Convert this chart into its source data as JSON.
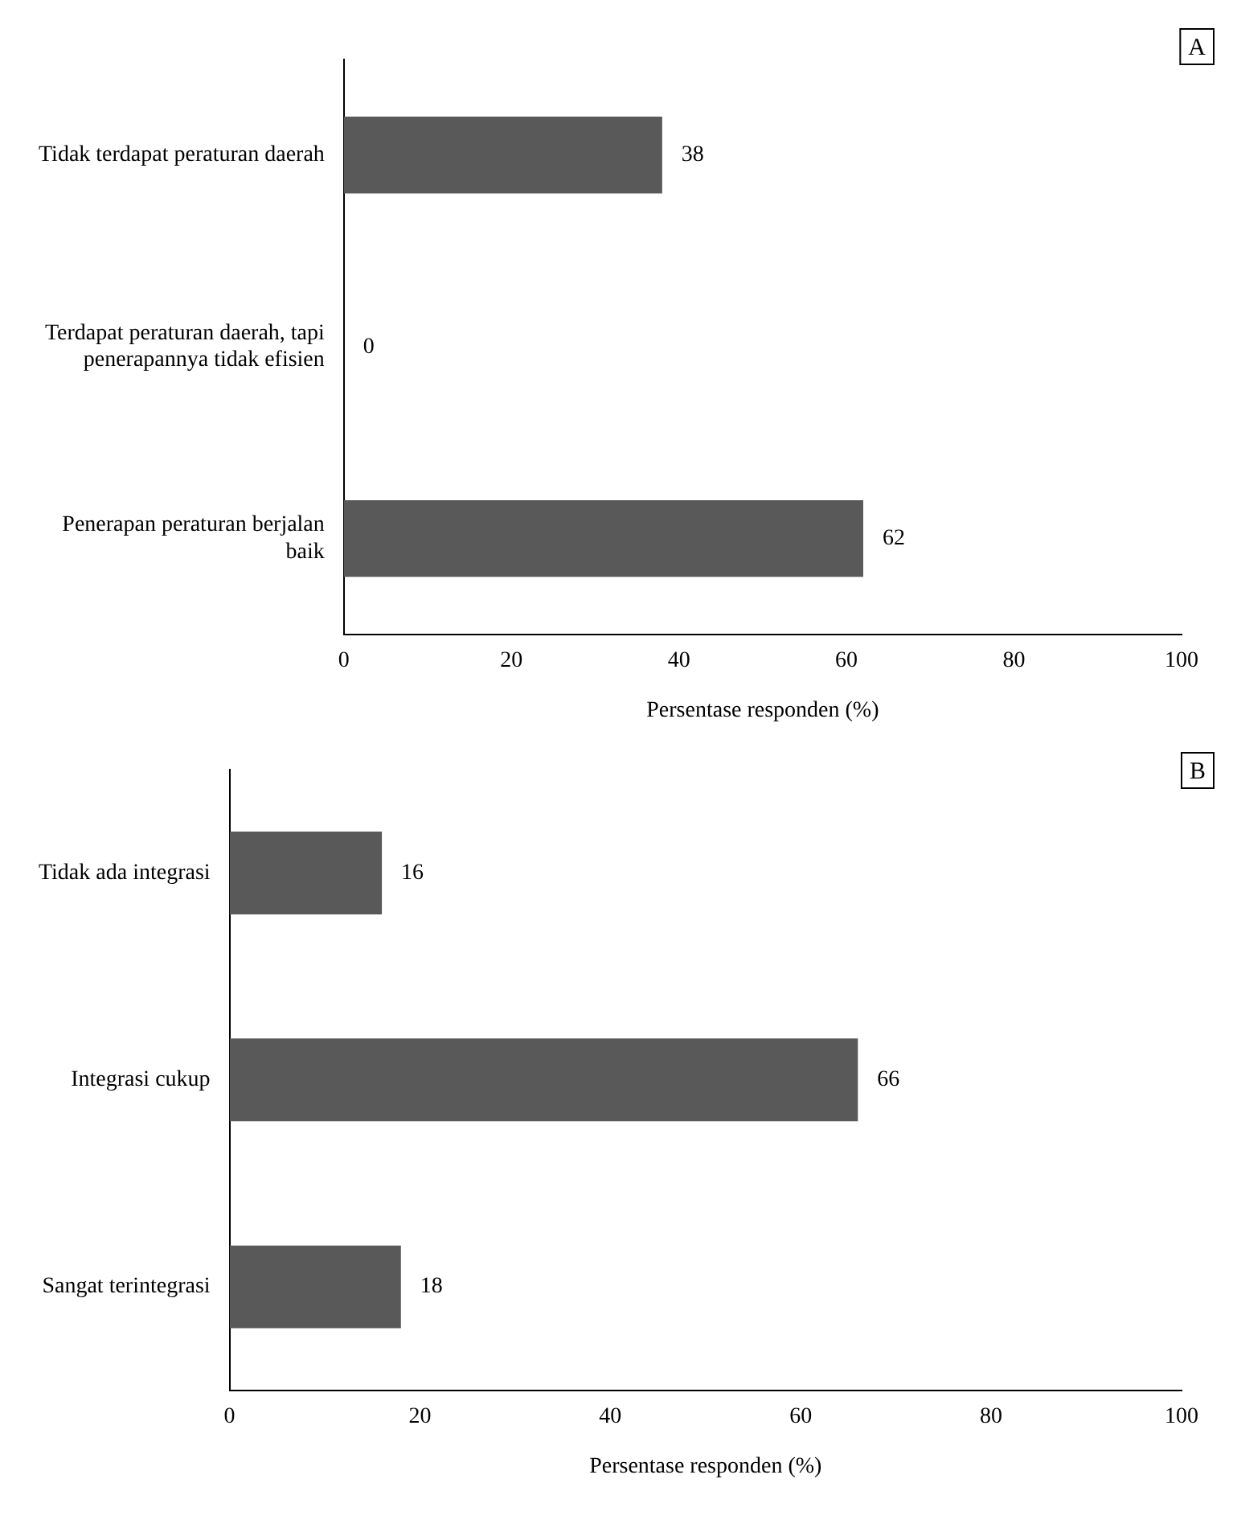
{
  "chart_data": [
    {
      "type": "bar",
      "orientation": "horizontal",
      "categories": [
        "Tidak terdapat peraturan daerah",
        "Terdapat peraturan daerah, tapi penerapannya tidak efisien",
        "Penerapan peraturan berjalan baik"
      ],
      "values": [
        38,
        0,
        62
      ],
      "color": "#595959",
      "xlim": [
        0,
        100
      ],
      "xticks": [
        0,
        20,
        40,
        60,
        80,
        100
      ],
      "xlabel": "Persentase responden (%)",
      "data_labels": true,
      "grid": false,
      "annotations": [
        "A"
      ]
    },
    {
      "type": "bar",
      "orientation": "horizontal",
      "categories": [
        "Tidak ada integrasi",
        "Integrasi cukup",
        "Sangat terintegrasi"
      ],
      "values": [
        16,
        66,
        18
      ],
      "color": "#595959",
      "xlim": [
        0,
        100
      ],
      "xticks": [
        0,
        20,
        40,
        60,
        80,
        100
      ],
      "xlabel": "Persentase responden (%)",
      "data_labels": true,
      "grid": false,
      "annotations": [
        "B"
      ]
    }
  ]
}
